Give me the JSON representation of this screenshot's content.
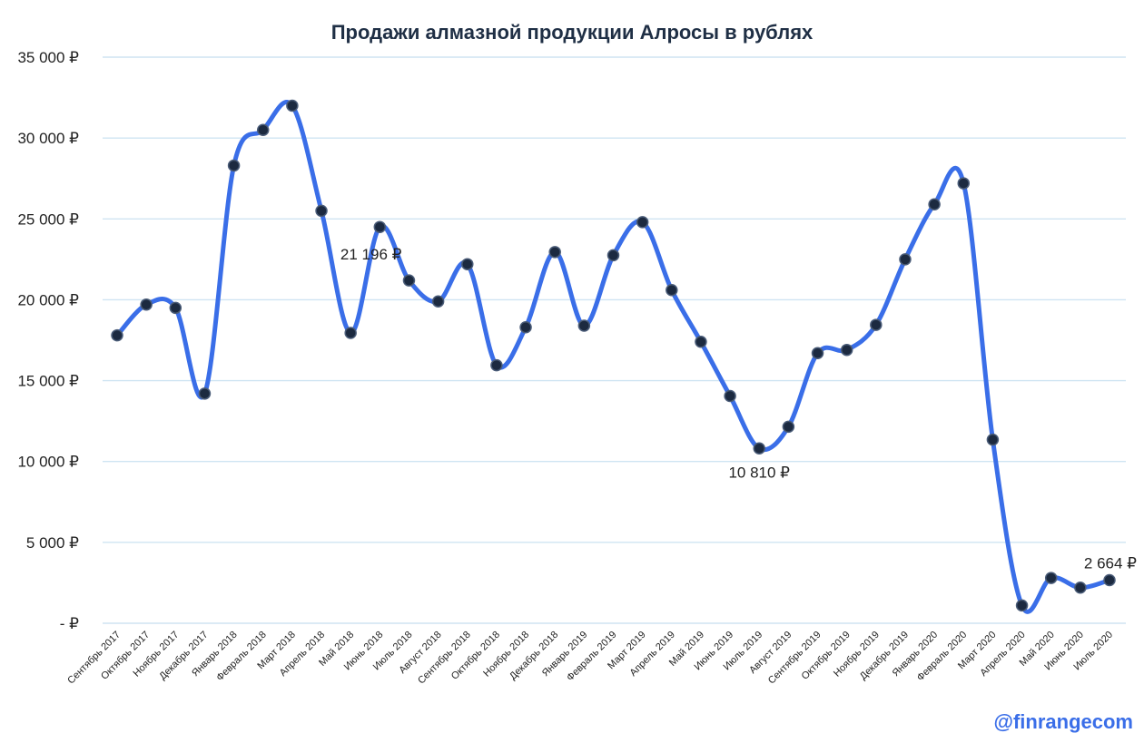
{
  "chart_data": {
    "type": "line",
    "title": "Продажи алмазной продукции Алросы в рублях",
    "xlabel": "",
    "ylabel": "",
    "ylim": [
      0,
      35000
    ],
    "y_ticks": [
      {
        "value": 0,
        "label": "-   ₽"
      },
      {
        "value": 5000,
        "label": "5 000 ₽"
      },
      {
        "value": 10000,
        "label": "10 000 ₽"
      },
      {
        "value": 15000,
        "label": "15 000 ₽"
      },
      {
        "value": 20000,
        "label": "20 000 ₽"
      },
      {
        "value": 25000,
        "label": "25 000 ₽"
      },
      {
        "value": 30000,
        "label": "30 000 ₽"
      },
      {
        "value": 35000,
        "label": "35 000 ₽"
      }
    ],
    "grid": true,
    "legend": "none",
    "color": "#3a6ee8",
    "categories": [
      "Сентябрь 2017",
      "Октябрь 2017",
      "Ноябрь 2017",
      "Декабрь 2017",
      "Январь 2018",
      "Февраль 2018",
      "Март 2018",
      "Апрель 2018",
      "Май 2018",
      "Июнь 2018",
      "Июль 2018",
      "Август 2018",
      "Сентябрь 2018",
      "Октябрь 2018",
      "Ноябрь 2018",
      "Декабрь 2018",
      "Январь 2019",
      "Февраль 2019",
      "Март 2019",
      "Апрель 2019",
      "Май 2019",
      "Июнь 2019",
      "Июль 2019",
      "Август 2019",
      "Сентябрь 2019",
      "Октябрь 2019",
      "Ноябрь 2019",
      "Декабрь 2019",
      "Январь 2020",
      "Февраль 2020",
      "Март 2020",
      "Апрель 2020",
      "Май 2020",
      "Июнь 2020",
      "Июль 2020"
    ],
    "series": [
      {
        "values": [
          17800,
          19700,
          19500,
          14200,
          28300,
          30500,
          32000,
          25500,
          17950,
          24500,
          21196,
          19900,
          22200,
          15950,
          18300,
          22950,
          18400,
          22750,
          24800,
          20600,
          17400,
          14050,
          10810,
          12150,
          16700,
          16900,
          18450,
          22500,
          25900,
          27200,
          11350,
          1100,
          2800,
          2200,
          2664
        ]
      }
    ],
    "data_labels": [
      {
        "index": 10,
        "text": "21 196 ₽"
      },
      {
        "index": 22,
        "text": "10 810 ₽"
      },
      {
        "index": 34,
        "text": "2 664 ₽"
      }
    ]
  },
  "watermark": "@finrangecom"
}
